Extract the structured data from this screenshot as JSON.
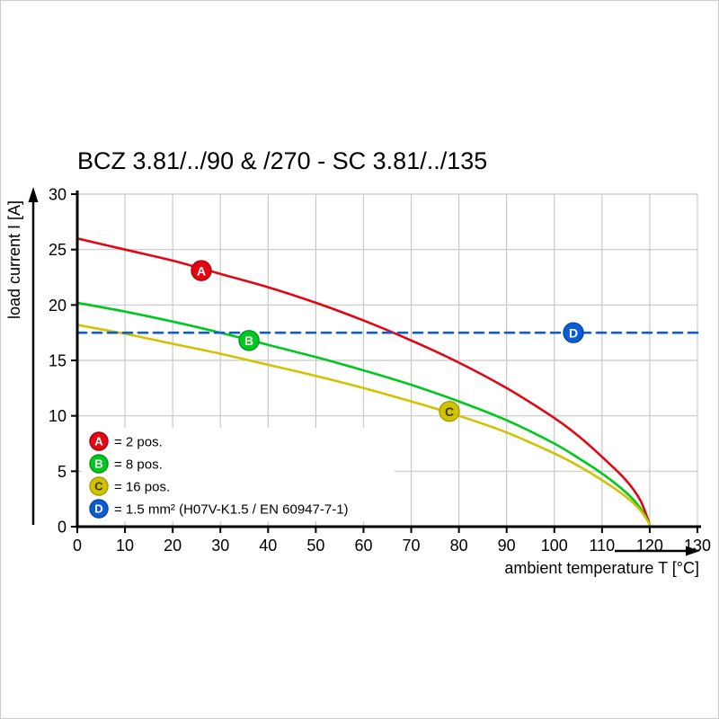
{
  "title": "BCZ 3.81/../90 & /270 - SC 3.81/../135",
  "chart_data": {
    "type": "line",
    "title": "BCZ 3.81/../90 & /270 - SC 3.81/../135",
    "xlabel": "ambient temperature T [°C]",
    "ylabel": "load current I [A]",
    "xlim": [
      0,
      130
    ],
    "ylim": [
      0,
      30
    ],
    "xticks": [
      0,
      10,
      20,
      30,
      40,
      50,
      60,
      70,
      80,
      90,
      100,
      110,
      120,
      130
    ],
    "yticks": [
      0,
      5,
      10,
      15,
      20,
      25,
      30
    ],
    "grid": true,
    "grid_color": "#c8c8c8",
    "axis_color": "#000000",
    "legend_position": "bottom-left",
    "series": [
      {
        "id": "A",
        "legend": "= 2 pos.",
        "color": "#e30613",
        "marker_stroke": "#a50410",
        "letter_color": "#ffffff",
        "dash": null,
        "marker_at": [
          26,
          23.1
        ],
        "points": [
          [
            0,
            26
          ],
          [
            10,
            25
          ],
          [
            20,
            24
          ],
          [
            30,
            22.8
          ],
          [
            40,
            21.6
          ],
          [
            50,
            20.2
          ],
          [
            60,
            18.6
          ],
          [
            70,
            16.8
          ],
          [
            80,
            14.8
          ],
          [
            90,
            12.5
          ],
          [
            100,
            9.8
          ],
          [
            105,
            8.2
          ],
          [
            110,
            6.3
          ],
          [
            115,
            4.2
          ],
          [
            118,
            2.4
          ],
          [
            120,
            0.2
          ]
        ]
      },
      {
        "id": "B",
        "legend": "= 8 pos.",
        "color": "#00c81e",
        "marker_stroke": "#009a15",
        "letter_color": "#ffffff",
        "dash": null,
        "marker_at": [
          36,
          16.8
        ],
        "points": [
          [
            0,
            20.2
          ],
          [
            10,
            19.4
          ],
          [
            20,
            18.5
          ],
          [
            30,
            17.5
          ],
          [
            40,
            16.4
          ],
          [
            50,
            15.3
          ],
          [
            60,
            14.1
          ],
          [
            70,
            12.8
          ],
          [
            80,
            11.3
          ],
          [
            90,
            9.6
          ],
          [
            100,
            7.5
          ],
          [
            105,
            6.2
          ],
          [
            110,
            4.8
          ],
          [
            115,
            3.1
          ],
          [
            118,
            1.7
          ],
          [
            120,
            0.2
          ]
        ]
      },
      {
        "id": "C",
        "legend": "= 16 pos.",
        "color": "#d2c200",
        "marker_stroke": "#a89b00",
        "letter_color": "#3d3800",
        "dash": null,
        "marker_at": [
          78,
          10.4
        ],
        "points": [
          [
            0,
            18.2
          ],
          [
            10,
            17.4
          ],
          [
            20,
            16.5
          ],
          [
            30,
            15.6
          ],
          [
            40,
            14.6
          ],
          [
            50,
            13.6
          ],
          [
            60,
            12.5
          ],
          [
            70,
            11.3
          ],
          [
            80,
            10.0
          ],
          [
            90,
            8.5
          ],
          [
            100,
            6.6
          ],
          [
            105,
            5.5
          ],
          [
            110,
            4.2
          ],
          [
            115,
            2.7
          ],
          [
            118,
            1.5
          ],
          [
            120,
            0.2
          ]
        ]
      },
      {
        "id": "D",
        "legend": "= 1.5 mm² (H07V-K1.5 / EN 60947-7-1)",
        "color": "#0b5cd5",
        "marker_stroke": "#0845a5",
        "letter_color": "#ffffff",
        "dash": "10 7",
        "marker_at": [
          104,
          17.5
        ],
        "points": [
          [
            0,
            17.5
          ],
          [
            130,
            17.5
          ]
        ]
      }
    ]
  }
}
